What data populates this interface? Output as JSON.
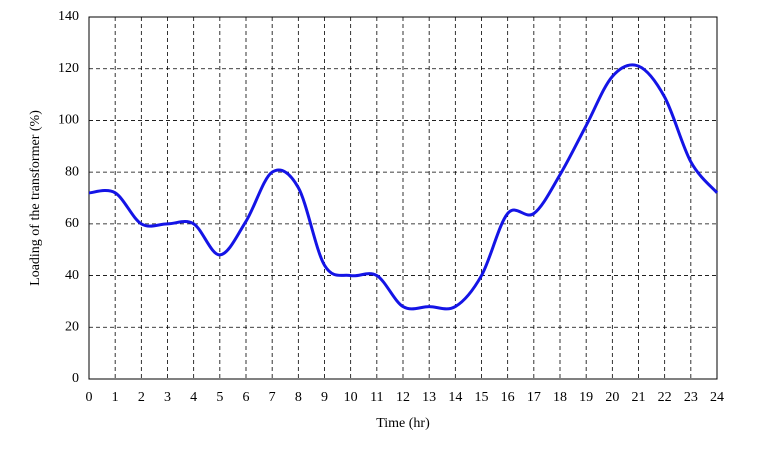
{
  "chart_data": {
    "type": "line",
    "x_label": "Time (hr)",
    "y_label": "Loading of the transformer (%)",
    "x": [
      0,
      1,
      2,
      3,
      4,
      5,
      6,
      7,
      8,
      9,
      10,
      11,
      12,
      13,
      14,
      15,
      16,
      17,
      18,
      19,
      20,
      21,
      22,
      23,
      24
    ],
    "series": [
      {
        "color": "#1414e6",
        "values": [
          72,
          72,
          60,
          60,
          60,
          48,
          61,
          80,
          74,
          44,
          40,
          40,
          28,
          28,
          28,
          40,
          64,
          64,
          79,
          98,
          117,
          121,
          109,
          84,
          72
        ]
      }
    ],
    "xlim": [
      0,
      24
    ],
    "xticks": [
      0,
      1,
      2,
      3,
      4,
      5,
      6,
      7,
      8,
      9,
      10,
      11,
      12,
      13,
      14,
      15,
      16,
      17,
      18,
      19,
      20,
      21,
      22,
      23,
      24
    ],
    "ylim": [
      0,
      140
    ],
    "yticks": [
      0,
      20,
      40,
      60,
      80,
      100,
      120,
      140
    ],
    "grid": true
  }
}
